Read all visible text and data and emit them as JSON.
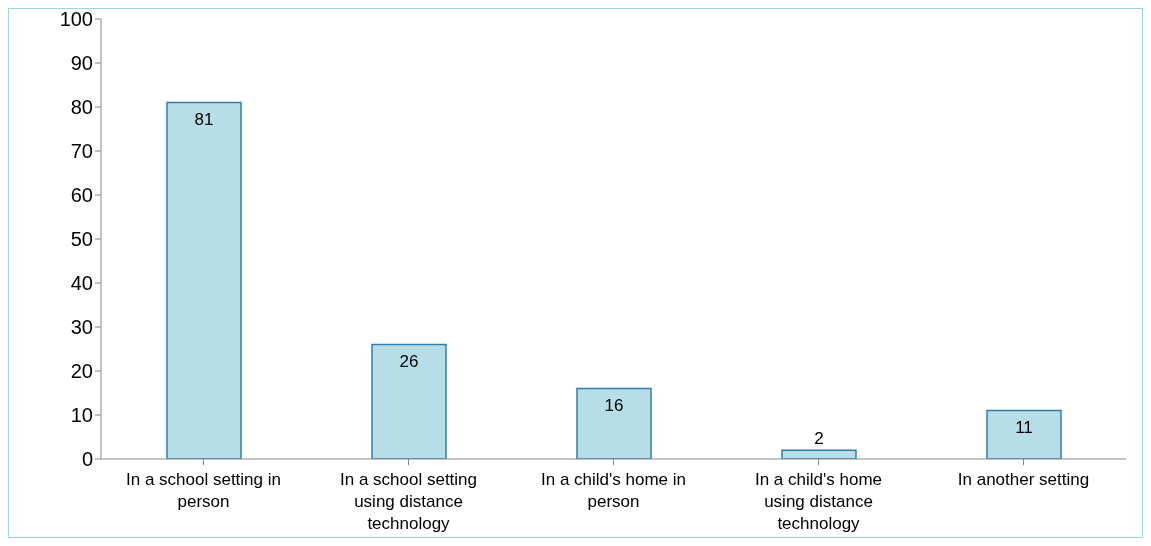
{
  "chart_data": {
    "type": "bar",
    "categories": [
      "In a school setting in person",
      "In a school setting using distance technology",
      "In a child's home in person",
      "In a child's home using distance technology",
      "In another setting"
    ],
    "values": [
      81,
      26,
      16,
      2,
      11
    ],
    "color": "#b7dde8",
    "ylim": [
      0,
      100
    ],
    "yticks": [
      0,
      10,
      20,
      30,
      40,
      50,
      60,
      70,
      80,
      90,
      100
    ],
    "grid": false,
    "data_labels": true,
    "legend": false
  }
}
